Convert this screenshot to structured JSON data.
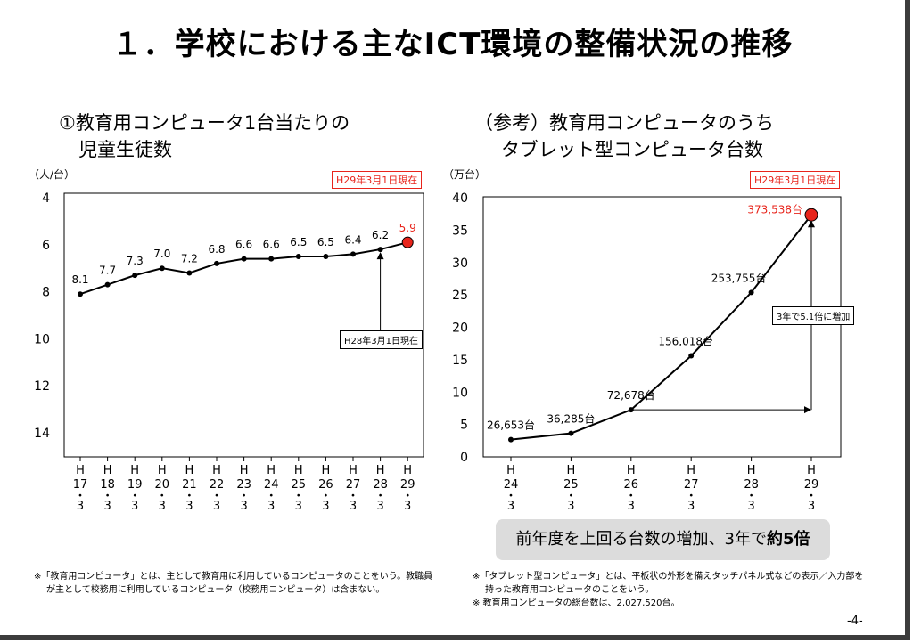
{
  "page": {
    "title": "１．学校における主なICT環境の整備状況の推移",
    "page_number": "-4-"
  },
  "left_chart": {
    "subtitle_line1": "①教育用コンピュータ1台当たりの",
    "subtitle_line2": "児童生徒数",
    "unit": "（人/台）",
    "current_badge": "H29年3月1日現在",
    "prev_note": "H28年3月1日現在"
  },
  "right_chart": {
    "subtitle_line1": "（参考）教育用コンピュータのうち",
    "subtitle_line2": "タブレット型コンピュータ台数",
    "unit": "（万台）",
    "current_badge": "H29年3月1日現在",
    "growth_note": "3年で5.1倍に増加"
  },
  "callout": {
    "text": "前年度を上回る台数の増加、3年で",
    "bold": "約5倍"
  },
  "footnotes": {
    "left_line1": "※「教育用コンピュータ」とは、主として教育用に利用しているコンピュータのことをいう。教職員",
    "left_line2": "が主として校務用に利用しているコンピュータ（校務用コンピュータ）は含まない。",
    "right_line1": "※「タブレット型コンピュータ」とは、平板状の外形を備えタッチパネル式などの表示／入力部を",
    "right_line2": "持った教育用コンピュータのことをいう。",
    "right_line3": "※ 教育用コンピュータの総台数は、2,027,520台。"
  },
  "colors": {
    "line": "#000000",
    "highlight": "#e8241b",
    "callout_bg": "#dcdcdc"
  },
  "chart_data": [
    {
      "type": "line",
      "categories": [
        "H17・3",
        "H18・3",
        "H19・3",
        "H20・3",
        "H21・3",
        "H22・3",
        "H23・3",
        "H24・3",
        "H25・3",
        "H26・3",
        "H27・3",
        "H28・3",
        "H29・3"
      ],
      "x_labels": [
        [
          "H",
          "17",
          "・",
          "3"
        ],
        [
          "H",
          "18",
          "・",
          "3"
        ],
        [
          "H",
          "19",
          "・",
          "3"
        ],
        [
          "H",
          "20",
          "・",
          "3"
        ],
        [
          "H",
          "21",
          "・",
          "3"
        ],
        [
          "H",
          "22",
          "・",
          "3"
        ],
        [
          "H",
          "23",
          "・",
          "3"
        ],
        [
          "H",
          "24",
          "・",
          "3"
        ],
        [
          "H",
          "25",
          "・",
          "3"
        ],
        [
          "H",
          "26",
          "・",
          "3"
        ],
        [
          "H",
          "27",
          "・",
          "3"
        ],
        [
          "H",
          "28",
          "・",
          "3"
        ],
        [
          "H",
          "29",
          "・",
          "3"
        ]
      ],
      "values": [
        8.1,
        7.7,
        7.3,
        7.0,
        7.2,
        6.8,
        6.6,
        6.6,
        6.5,
        6.5,
        6.4,
        6.2,
        5.9
      ],
      "value_labels": [
        "8.1",
        "7.7",
        "7.3",
        "7.0",
        "7.2",
        "6.8",
        "6.6",
        "6.6",
        "6.5",
        "6.5",
        "6.4",
        "6.2",
        "5.9"
      ],
      "ylabel": "（人/台）",
      "ylim": [
        4,
        15
      ],
      "y_ticks": [
        4,
        6,
        8,
        10,
        12,
        14
      ],
      "y_axis_reversed": true,
      "grid": false,
      "highlight_last": true
    },
    {
      "type": "line",
      "categories": [
        "H24・3",
        "H25・3",
        "H26・3",
        "H27・3",
        "H28・3",
        "H29・3"
      ],
      "x_labels": [
        [
          "H",
          "24",
          "・",
          "3"
        ],
        [
          "H",
          "25",
          "・",
          "3"
        ],
        [
          "H",
          "26",
          "・",
          "3"
        ],
        [
          "H",
          "27",
          "・",
          "3"
        ],
        [
          "H",
          "28",
          "・",
          "3"
        ],
        [
          "H",
          "29",
          "・",
          "3"
        ]
      ],
      "values": [
        26653,
        36285,
        72678,
        156018,
        253755,
        373538
      ],
      "value_labels": [
        "26,653台",
        "36,285台",
        "72,678台",
        "156,018台",
        "253,755台",
        "373,538台"
      ],
      "ylabel": "（万台）",
      "ylim": [
        0,
        40
      ],
      "y_ticks": [
        0,
        5,
        10,
        15,
        20,
        25,
        30,
        35,
        40
      ],
      "y_unit_divisor": 10000,
      "grid": false,
      "highlight_last": true
    }
  ]
}
